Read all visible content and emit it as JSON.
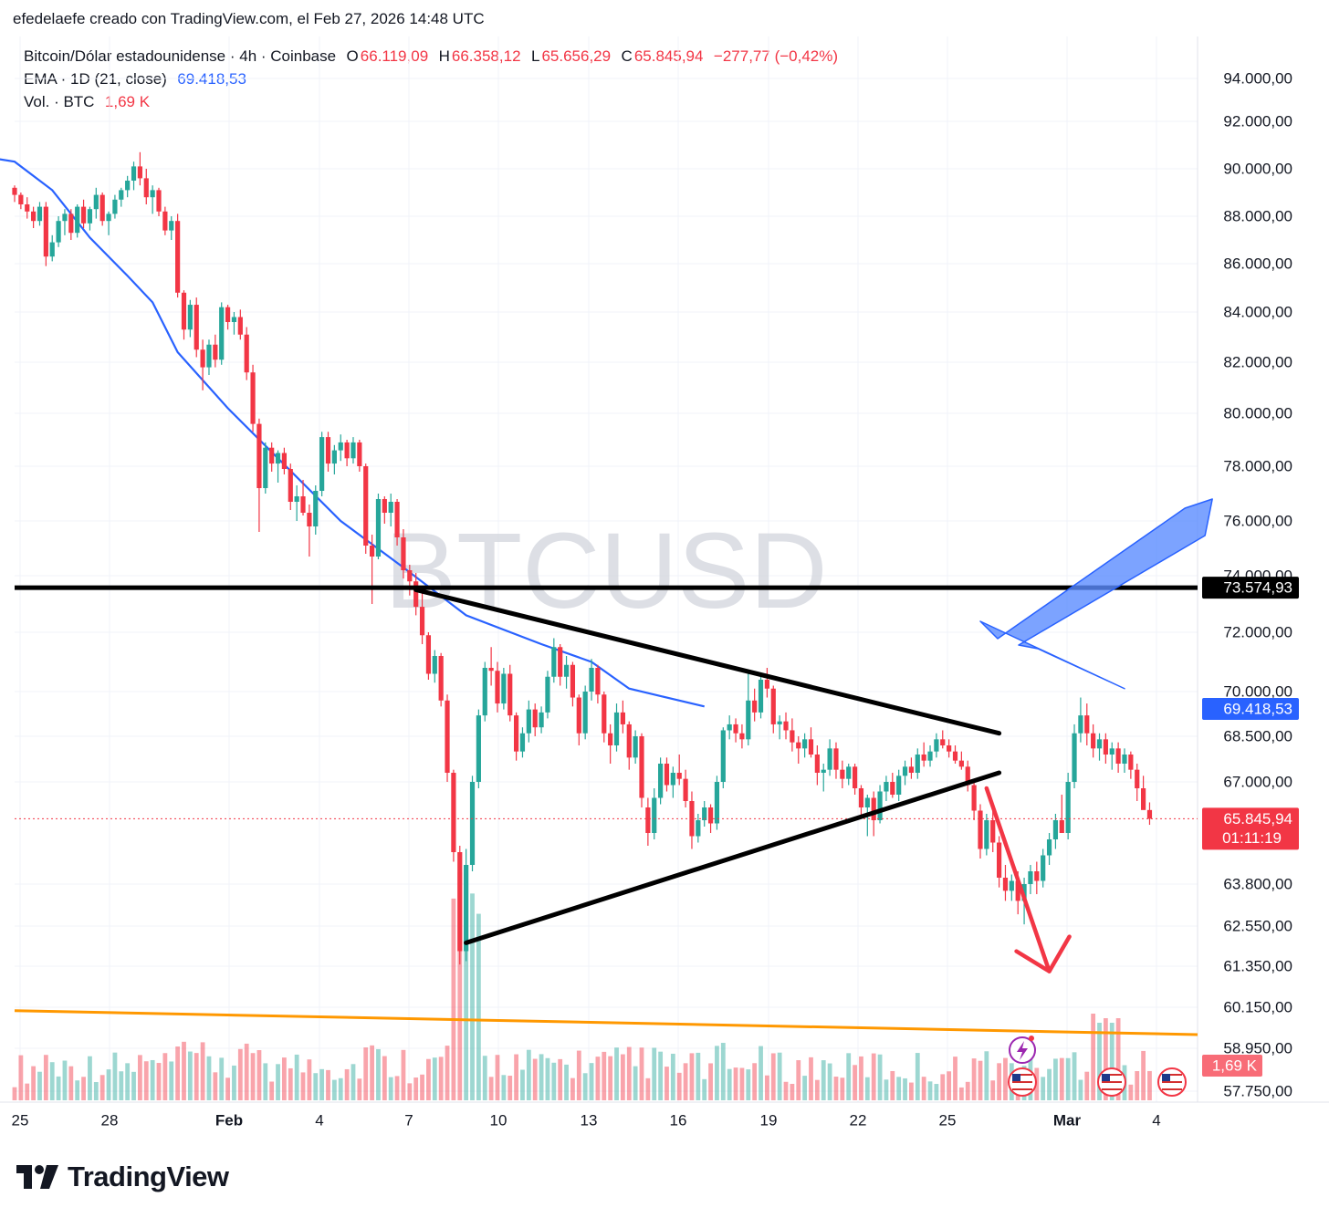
{
  "caption": "efedelaefe creado con TradingView.com, el Feb 27, 2026 14:48 UTC",
  "legend": {
    "symbol": "Bitcoin/Dólar estadounidense · 4h · Coinbase",
    "o_label": "O",
    "o_value": "66.119,09",
    "h_label": "H",
    "h_value": "66.358,12",
    "l_label": "L",
    "l_value": "65.656,29",
    "c_label": "C",
    "c_value": "65.845,94",
    "change": "−277,77 (−0,42%)",
    "ema_label": "EMA · 1D (21, close)",
    "ema_value": "69.418,53",
    "vol_label": "Vol. · BTC",
    "vol_value": "1,69 K"
  },
  "watermark": "BTCUSD",
  "brand": "TradingView",
  "colors": {
    "up": "#26a69a",
    "down": "#f23645",
    "ema": "#2962ff",
    "resistance": "#000000",
    "support": "#ff9800",
    "triangle": "#000000",
    "arrow_down": "#f23645",
    "arrow_pointer": "#5b8cff"
  },
  "chart_data": {
    "type": "candlestick",
    "title": "BTCUSD",
    "timeframe": "4h",
    "x_ticks": [
      "25",
      "28",
      "Feb",
      "4",
      "7",
      "10",
      "13",
      "16",
      "19",
      "22",
      "25",
      "Mar",
      "4"
    ],
    "y_ticks": [
      "94.000,00",
      "92.000,00",
      "90.000,00",
      "88.000,00",
      "86.000,00",
      "84.000,00",
      "82.000,00",
      "80.000,00",
      "78.000,00",
      "76.000,00",
      "74.000,00",
      "72.000,00",
      "70.000,00",
      "68.500,00",
      "67.000,00",
      "63.800,00",
      "62.550,00",
      "61.350,00",
      "60.150,00",
      "58.950,00",
      "57.750,00"
    ],
    "y_tick_values": [
      94000,
      92000,
      90000,
      88000,
      86000,
      84000,
      82000,
      80000,
      78000,
      76000,
      74000,
      72000,
      70000,
      68500,
      67000,
      63800,
      62550,
      61350,
      60150,
      58950,
      57750
    ],
    "price_labels": [
      {
        "name": "resistance",
        "text": "73.574,93",
        "value": 73574.93
      },
      {
        "name": "ema",
        "text": "69.418,53",
        "value": 69418.53
      },
      {
        "name": "last-price",
        "text": "65.845,94",
        "value": 65845.94,
        "countdown": "01:11:19"
      },
      {
        "name": "volume",
        "text": "1,69 K"
      }
    ],
    "resistance_level": 73574.93,
    "last_price": 65845.94,
    "ema_series": [
      {
        "t": -12,
        "v": 91200
      },
      {
        "t": -7,
        "v": 90600
      },
      {
        "t": 0,
        "v": 90300
      },
      {
        "t": 6,
        "v": 89100
      },
      {
        "t": 12,
        "v": 87100
      },
      {
        "t": 18,
        "v": 85500
      },
      {
        "t": 22,
        "v": 84400
      },
      {
        "t": 26,
        "v": 82400
      },
      {
        "t": 34,
        "v": 80200
      },
      {
        "t": 42,
        "v": 78300
      },
      {
        "t": 52,
        "v": 76000
      },
      {
        "t": 62,
        "v": 74300
      },
      {
        "t": 72,
        "v": 72600
      },
      {
        "t": 84,
        "v": 71600
      },
      {
        "t": 92,
        "v": 71000
      },
      {
        "t": 98,
        "v": 70100
      },
      {
        "t": 103,
        "v": 69850
      },
      {
        "t": 110,
        "v": 69500
      }
    ],
    "candles_ohlc": [
      [
        89200,
        89300,
        88600,
        88900
      ],
      [
        88900,
        89000,
        88300,
        88500
      ],
      [
        88500,
        88800,
        87900,
        88200
      ],
      [
        88200,
        88400,
        87500,
        87800
      ],
      [
        87800,
        88600,
        87600,
        88400
      ],
      [
        88400,
        88600,
        85900,
        86300
      ],
      [
        86300,
        87200,
        86100,
        86900
      ],
      [
        86900,
        88000,
        86700,
        87800
      ],
      [
        87800,
        88300,
        87200,
        88100
      ],
      [
        88100,
        88300,
        87000,
        87300
      ],
      [
        87300,
        88500,
        87100,
        88400
      ],
      [
        88400,
        88700,
        87500,
        87700
      ],
      [
        87700,
        88400,
        87400,
        88300
      ],
      [
        88300,
        89200,
        87900,
        88900
      ],
      [
        88900,
        89000,
        87600,
        87800
      ],
      [
        87800,
        88200,
        87200,
        88100
      ],
      [
        88100,
        88900,
        87900,
        88700
      ],
      [
        88700,
        89200,
        88400,
        89100
      ],
      [
        89100,
        89700,
        88800,
        89500
      ],
      [
        89500,
        90300,
        89100,
        90100
      ],
      [
        90100,
        90700,
        89300,
        89600
      ],
      [
        89600,
        90000,
        88500,
        88800
      ],
      [
        88800,
        89300,
        88100,
        89100
      ],
      [
        89100,
        89200,
        88000,
        88200
      ],
      [
        88200,
        88400,
        87200,
        87400
      ],
      [
        87400,
        88000,
        87000,
        87800
      ],
      [
        87800,
        88100,
        84600,
        84800
      ],
      [
        84800,
        84900,
        82900,
        83300
      ],
      [
        83300,
        84500,
        83000,
        84300
      ],
      [
        84300,
        84600,
        82200,
        82500
      ],
      [
        82500,
        82900,
        80900,
        81800
      ],
      [
        81800,
        82900,
        81500,
        82700
      ],
      [
        82700,
        83100,
        81800,
        82100
      ],
      [
        82100,
        84400,
        81900,
        84200
      ],
      [
        84200,
        84300,
        83300,
        83600
      ],
      [
        83600,
        84000,
        83100,
        83800
      ],
      [
        83800,
        84100,
        82900,
        83100
      ],
      [
        83100,
        83400,
        81300,
        81600
      ],
      [
        81600,
        81900,
        79300,
        79600
      ],
      [
        79600,
        79800,
        75600,
        77200
      ],
      [
        77200,
        78900,
        77000,
        78700
      ],
      [
        78700,
        78900,
        77800,
        78100
      ],
      [
        78100,
        78600,
        77400,
        78500
      ],
      [
        78500,
        78700,
        77700,
        77900
      ],
      [
        77900,
        78100,
        76400,
        76700
      ],
      [
        76700,
        77300,
        76000,
        76900
      ],
      [
        76900,
        77500,
        76200,
        76300
      ],
      [
        76300,
        76600,
        74700,
        75800
      ],
      [
        75800,
        77300,
        75500,
        77100
      ],
      [
        77100,
        79300,
        76900,
        79100
      ],
      [
        79100,
        79300,
        77800,
        78100
      ],
      [
        78100,
        78800,
        77700,
        78600
      ],
      [
        78600,
        79200,
        78200,
        78900
      ],
      [
        78900,
        79000,
        78000,
        78300
      ],
      [
        78300,
        79100,
        78100,
        78900
      ],
      [
        78900,
        79000,
        77800,
        78000
      ],
      [
        78000,
        78100,
        74800,
        75100
      ],
      [
        75100,
        75500,
        73000,
        74700
      ],
      [
        74700,
        77000,
        74600,
        76800
      ],
      [
        76800,
        76900,
        75900,
        76300
      ],
      [
        76300,
        77000,
        75800,
        76700
      ],
      [
        76700,
        76800,
        75100,
        75400
      ],
      [
        75400,
        75700,
        73900,
        74200
      ],
      [
        74200,
        74400,
        73300,
        73800
      ],
      [
        73800,
        74100,
        72600,
        72900
      ],
      [
        72900,
        73500,
        71600,
        71900
      ],
      [
        71900,
        72000,
        70400,
        70600
      ],
      [
        70600,
        71400,
        70300,
        71200
      ],
      [
        71200,
        71300,
        69500,
        69700
      ],
      [
        69700,
        69900,
        67000,
        67300
      ],
      [
        67300,
        67400,
        64500,
        64800
      ],
      [
        64800,
        65000,
        61400,
        61800
      ],
      [
        61800,
        64900,
        61500,
        64400
      ],
      [
        64400,
        67200,
        64200,
        67000
      ],
      [
        67000,
        69400,
        66800,
        69200
      ],
      [
        69200,
        71000,
        69000,
        70800
      ],
      [
        70800,
        71500,
        70200,
        70700
      ],
      [
        70700,
        71000,
        69300,
        69600
      ],
      [
        69600,
        70800,
        69400,
        70600
      ],
      [
        70600,
        70900,
        69000,
        69200
      ],
      [
        69200,
        69300,
        67700,
        68000
      ],
      [
        68000,
        68800,
        67800,
        68600
      ],
      [
        68600,
        69700,
        68300,
        69400
      ],
      [
        69400,
        69600,
        68500,
        68800
      ],
      [
        68800,
        69500,
        68600,
        69300
      ],
      [
        69300,
        70700,
        69100,
        70500
      ],
      [
        70500,
        71800,
        70300,
        71500
      ],
      [
        71500,
        71600,
        70200,
        70500
      ],
      [
        70500,
        71200,
        70100,
        70900
      ],
      [
        70900,
        71000,
        69500,
        69800
      ],
      [
        69800,
        69900,
        68200,
        68600
      ],
      [
        68600,
        70200,
        68400,
        70000
      ],
      [
        70000,
        71100,
        69700,
        70800
      ],
      [
        70800,
        70900,
        69600,
        69900
      ],
      [
        69900,
        70000,
        68300,
        68600
      ],
      [
        68600,
        68900,
        67600,
        68200
      ],
      [
        68200,
        69600,
        68000,
        69300
      ],
      [
        69300,
        69700,
        68600,
        68900
      ],
      [
        68900,
        69000,
        67400,
        67800
      ],
      [
        67800,
        68700,
        67600,
        68500
      ],
      [
        68500,
        68600,
        66200,
        66500
      ],
      [
        66200,
        66500,
        65000,
        65400
      ],
      [
        65400,
        66800,
        65200,
        66500
      ],
      [
        66500,
        67800,
        66300,
        67600
      ],
      [
        67600,
        67800,
        66700,
        66900
      ],
      [
        66900,
        67500,
        66500,
        67300
      ],
      [
        67300,
        67900,
        66900,
        67100
      ],
      [
        67100,
        67400,
        66200,
        66400
      ],
      [
        66400,
        66700,
        64900,
        65300
      ],
      [
        65300,
        66000,
        65100,
        65800
      ],
      [
        65800,
        66400,
        65600,
        66200
      ],
      [
        66200,
        66300,
        65400,
        65700
      ],
      [
        65700,
        67200,
        65500,
        67000
      ],
      [
        67000,
        68800,
        66800,
        68700
      ],
      [
        68700,
        69200,
        68400,
        68900
      ],
      [
        68900,
        69100,
        68300,
        68600
      ],
      [
        68600,
        68900,
        68100,
        68400
      ],
      [
        68400,
        70700,
        68200,
        69700
      ],
      [
        69700,
        70100,
        69000,
        69300
      ],
      [
        69300,
        70600,
        69100,
        70400
      ],
      [
        70400,
        70800,
        69800,
        70100
      ],
      [
        70100,
        70200,
        68600,
        68900
      ],
      [
        68900,
        69200,
        68400,
        69000
      ],
      [
        69000,
        69300,
        68400,
        68700
      ],
      [
        68700,
        69100,
        68000,
        68300
      ],
      [
        68300,
        68500,
        67600,
        68100
      ],
      [
        68100,
        68600,
        67800,
        68400
      ],
      [
        68400,
        68800,
        67800,
        67900
      ],
      [
        67900,
        68200,
        66900,
        67300
      ],
      [
        67300,
        67600,
        66700,
        67400
      ],
      [
        67400,
        68400,
        67200,
        68100
      ],
      [
        68100,
        68300,
        67100,
        67400
      ],
      [
        67400,
        67700,
        66800,
        67100
      ],
      [
        67100,
        67600,
        66900,
        67500
      ],
      [
        67500,
        67600,
        66600,
        66800
      ],
      [
        66800,
        66900,
        65900,
        66200
      ],
      [
        66200,
        66600,
        65300,
        66500
      ],
      [
        66500,
        66700,
        65300,
        65800
      ],
      [
        65800,
        66900,
        65700,
        66700
      ],
      [
        66700,
        67200,
        66400,
        67000
      ],
      [
        67000,
        67300,
        66500,
        66600
      ],
      [
        66600,
        67400,
        66400,
        67200
      ],
      [
        67200,
        67700,
        66900,
        67500
      ],
      [
        67500,
        67800,
        67100,
        67300
      ],
      [
        67300,
        68100,
        67100,
        67900
      ],
      [
        67900,
        68300,
        67500,
        67700
      ],
      [
        67700,
        68200,
        67500,
        68000
      ],
      [
        68000,
        68600,
        67800,
        68400
      ],
      [
        68400,
        68700,
        68100,
        68200
      ],
      [
        68200,
        68400,
        67800,
        68000
      ],
      [
        68000,
        68200,
        67600,
        67700
      ],
      [
        67700,
        68000,
        67400,
        67500
      ],
      [
        67500,
        67700,
        66700,
        66900
      ],
      [
        66900,
        67000,
        65800,
        66100
      ],
      [
        66100,
        66300,
        64600,
        64900
      ],
      [
        64900,
        66000,
        64700,
        65800
      ],
      [
        65800,
        66100,
        64800,
        65100
      ],
      [
        65100,
        65300,
        63700,
        64000
      ],
      [
        64000,
        64400,
        63300,
        63600
      ],
      [
        63600,
        64100,
        63300,
        63900
      ],
      [
        63900,
        64200,
        62900,
        63300
      ],
      [
        63300,
        64000,
        62600,
        63800
      ],
      [
        63800,
        64400,
        63500,
        64200
      ],
      [
        64200,
        64500,
        63500,
        63900
      ],
      [
        63900,
        64900,
        63700,
        64700
      ],
      [
        64700,
        65400,
        64400,
        65200
      ],
      [
        65200,
        66000,
        64900,
        65800
      ],
      [
        65800,
        66600,
        65500,
        65400
      ],
      [
        65400,
        67300,
        65200,
        67000
      ],
      [
        67000,
        68900,
        66800,
        68600
      ],
      [
        68600,
        69800,
        68300,
        69200
      ],
      [
        69200,
        69600,
        68200,
        68600
      ],
      [
        68600,
        68900,
        67800,
        68100
      ],
      [
        68100,
        68600,
        67700,
        68400
      ],
      [
        68400,
        68600,
        67600,
        67900
      ],
      [
        67900,
        68300,
        67400,
        68100
      ],
      [
        68100,
        68300,
        67300,
        67600
      ],
      [
        67600,
        68100,
        67300,
        67900
      ],
      [
        67900,
        68000,
        67100,
        67400
      ],
      [
        67400,
        67600,
        66400,
        66800
      ],
      [
        66800,
        67200,
        66200,
        66119
      ],
      [
        66119,
        66358,
        65656,
        65846
      ]
    ],
    "annotations": [
      {
        "type": "horizontal-line",
        "name": "resistance",
        "value": 73574.93
      },
      {
        "type": "trendline",
        "name": "triangle-upper",
        "from": {
          "t": 64,
          "v": 73500
        },
        "to": {
          "t": 157,
          "v": 68600
        }
      },
      {
        "type": "trendline",
        "name": "triangle-lower",
        "from": {
          "t": 72,
          "v": 62050
        },
        "to": {
          "t": 157,
          "v": 67300
        }
      },
      {
        "type": "trendline",
        "name": "support",
        "from": {
          "t": -2,
          "v": 60050
        },
        "to": {
          "t": 218,
          "v": 59350
        }
      },
      {
        "type": "arrow",
        "name": "breakdown-arrow",
        "from": {
          "t": 155,
          "v": 66800
        },
        "to": {
          "t": 165,
          "v": 61200
        }
      },
      {
        "type": "arrow",
        "name": "ema-rejection-arrow",
        "from": {
          "t": 191,
          "v": 76800
        },
        "to": {
          "t": 177,
          "v": 70100
        }
      }
    ]
  }
}
